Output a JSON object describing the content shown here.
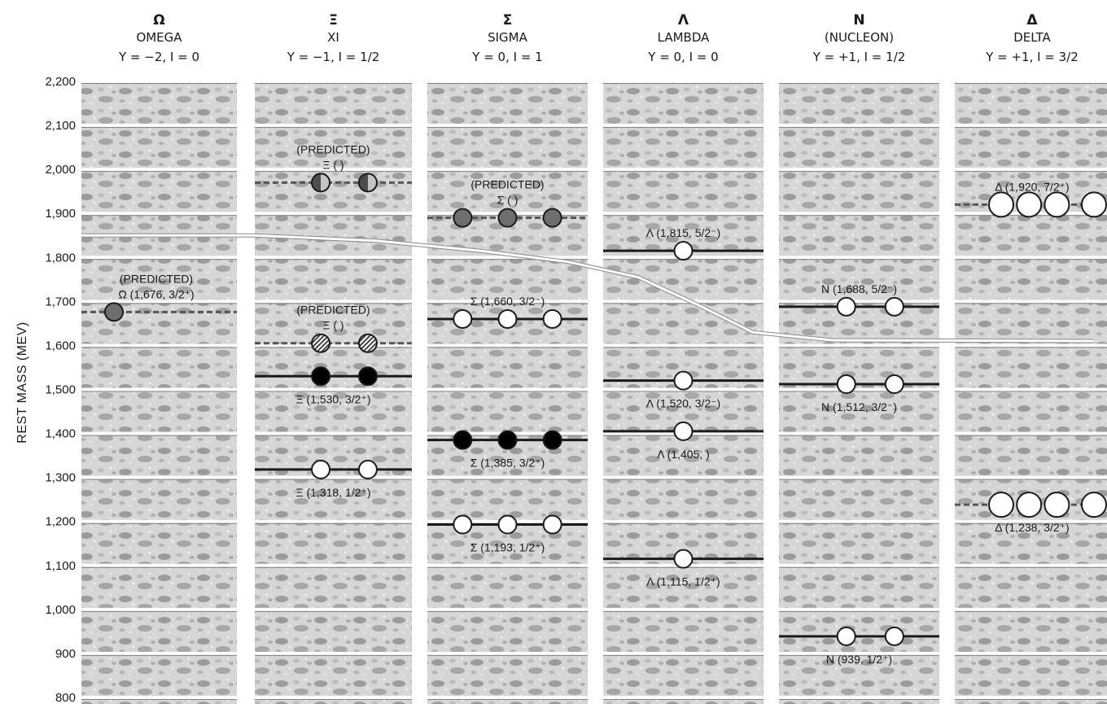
{
  "chart_data": {
    "type": "scatter",
    "ylabel": "REST MASS (MEV)",
    "ylim": [
      800,
      2200
    ],
    "yticks": [
      "800",
      "900",
      "1,000",
      "1,100",
      "1,200",
      "1,300",
      "1,400",
      "1,500",
      "1,600",
      "1,700",
      "1,800",
      "1,900",
      "2,000",
      "2,100",
      "2,200"
    ],
    "grid": true,
    "columns": [
      {
        "symbol": "Ω",
        "name": "OMEGA",
        "qn": "Y = −2, I = 0"
      },
      {
        "symbol": "Ξ",
        "name": "XI",
        "qn": "Y = −1, I = 1/2"
      },
      {
        "symbol": "Σ",
        "name": "SIGMA",
        "qn": "Y = 0, I = 1"
      },
      {
        "symbol": "Λ",
        "name": "LAMBDA",
        "qn": "Y = 0, I = 0"
      },
      {
        "symbol": "N",
        "name": "(NUCLEON)",
        "qn": "Y = +1, I = 1/2"
      },
      {
        "symbol": "Δ",
        "name": "DELTA",
        "qn": "Y = +1, I = 3/2"
      }
    ],
    "particles": [
      {
        "col": 0,
        "mass": 1676,
        "count": 1,
        "style": "predicted-gray",
        "dashed": true,
        "label": "Ω (1,676, 3/2⁺)",
        "note": "(PREDICTED)"
      },
      {
        "col": 1,
        "mass": 1970,
        "count": 2,
        "style": "predicted-half",
        "dashed": true,
        "label": "Ξ (            )",
        "note": "(PREDICTED)"
      },
      {
        "col": 1,
        "mass": 1605,
        "count": 2,
        "style": "predicted-hatched",
        "dashed": true,
        "label": "Ξ (            )",
        "note": "(PREDICTED)"
      },
      {
        "col": 1,
        "mass": 1530,
        "count": 2,
        "style": "filled",
        "dashed": false,
        "label": "Ξ (1,530, 3/2⁺)"
      },
      {
        "col": 1,
        "mass": 1318,
        "count": 2,
        "style": "open",
        "dashed": false,
        "label": "Ξ (1,318, 1/2⁺)"
      },
      {
        "col": 2,
        "mass": 1890,
        "count": 3,
        "style": "predicted-gray",
        "dashed": true,
        "label": "Σ (            )",
        "note": "(PREDICTED)"
      },
      {
        "col": 2,
        "mass": 1660,
        "count": 3,
        "style": "open",
        "dashed": false,
        "label": "Σ (1,660, 3/2⁻)"
      },
      {
        "col": 2,
        "mass": 1385,
        "count": 3,
        "style": "filled",
        "dashed": false,
        "label": "Σ (1,385, 3/2⁺)"
      },
      {
        "col": 2,
        "mass": 1193,
        "count": 3,
        "style": "open",
        "dashed": false,
        "label": "Σ (1,193, 1/2⁺)"
      },
      {
        "col": 3,
        "mass": 1815,
        "count": 1,
        "style": "open",
        "dashed": false,
        "label": "Λ (1,815, 5/2⁻)"
      },
      {
        "col": 3,
        "mass": 1520,
        "count": 1,
        "style": "open",
        "dashed": false,
        "label": "Λ (1,520, 3/2⁻)"
      },
      {
        "col": 3,
        "mass": 1405,
        "count": 1,
        "style": "open",
        "dashed": false,
        "label": "Λ (1,405,      )"
      },
      {
        "col": 3,
        "mass": 1115,
        "count": 1,
        "style": "open",
        "dashed": false,
        "label": "Λ (1,115, 1/2⁺)"
      },
      {
        "col": 4,
        "mass": 1688,
        "count": 2,
        "style": "open",
        "dashed": false,
        "label": "N (1,688, 5/2⁻)"
      },
      {
        "col": 4,
        "mass": 1512,
        "count": 2,
        "style": "open",
        "dashed": false,
        "label": "N (1,512, 3/2⁻)"
      },
      {
        "col": 4,
        "mass": 939,
        "count": 2,
        "style": "open",
        "dashed": false,
        "label": "N (939, 1/2⁺)"
      },
      {
        "col": 5,
        "mass": 1920,
        "count": 4,
        "style": "open",
        "dashed": true,
        "label": "Δ (1,920, 7/2⁺)"
      },
      {
        "col": 5,
        "mass": 1238,
        "count": 4,
        "style": "open",
        "dashed": true,
        "label": "Δ (1,238, 3/2⁺)"
      }
    ],
    "curves": [
      {
        "points": [
          [
            0,
            1850
          ],
          [
            1,
            1850
          ],
          [
            1.7,
            1838
          ],
          [
            2.3,
            1815
          ],
          [
            2.8,
            1790
          ],
          [
            3.2,
            1755
          ],
          [
            3.55,
            1690
          ],
          [
            3.85,
            1630
          ],
          [
            4.3,
            1612
          ],
          [
            5.9,
            1610
          ]
        ]
      }
    ]
  }
}
